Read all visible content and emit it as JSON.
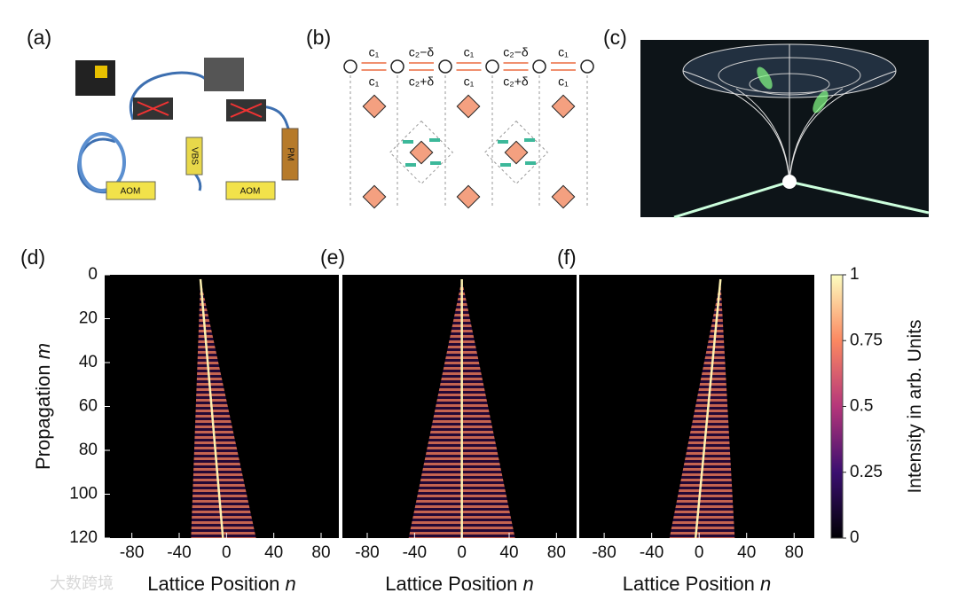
{
  "panels": {
    "a": {
      "label": "(a)",
      "devices": [
        "AOM",
        "AOM",
        "VBS",
        "PM"
      ]
    },
    "b": {
      "label": "(b)",
      "top": [
        "c₁",
        "c₂−δ",
        "c₁",
        "c₂−δ",
        "c₁"
      ],
      "bottom": [
        "c₁",
        "c₂+δ",
        "c₁",
        "c₂+δ",
        "c₁"
      ]
    },
    "c": {
      "label": "(c)"
    }
  },
  "chart_data": [
    {
      "type": "heatmap",
      "label": "(d)",
      "xlabel": "Lattice Position",
      "xvar": "n",
      "ylabel": "Propagation",
      "yvar": "m",
      "xlim": [
        -103,
        95
      ],
      "ylim": [
        0,
        120
      ],
      "xticks": [
        -80,
        -40,
        0,
        40,
        80
      ],
      "yticks": [
        0,
        20,
        40,
        60,
        80,
        100,
        120
      ]
    },
    {
      "type": "heatmap",
      "label": "(e)",
      "xlabel": "Lattice Position",
      "xvar": "n",
      "xlim": [
        -101,
        97
      ],
      "ylim": [
        0,
        120
      ],
      "xticks": [
        -80,
        -40,
        0,
        40,
        80
      ]
    },
    {
      "type": "heatmap",
      "label": "(f)",
      "xlabel": "Lattice Position",
      "xvar": "n",
      "xlim": [
        -101,
        97
      ],
      "ylim": [
        0,
        120
      ],
      "xticks": [
        -80,
        -40,
        0,
        40,
        80
      ]
    }
  ],
  "colorbar": {
    "label": "Intensity in arb. Units",
    "lim": [
      0,
      1
    ],
    "ticks": [
      0,
      0.25,
      0.5,
      0.75,
      1
    ]
  },
  "watermark": "大数跨境"
}
